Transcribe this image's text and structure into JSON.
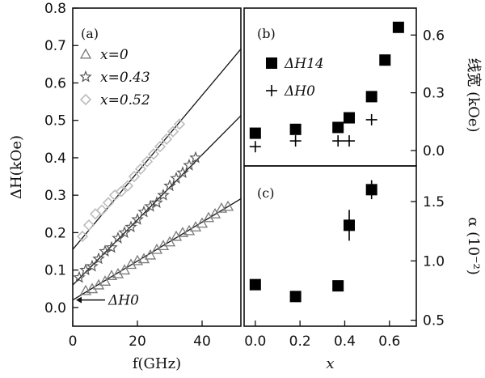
{
  "chart_data": [
    {
      "panel": "(a)",
      "type": "scatter",
      "xlabel": "f(GHz)",
      "ylabel": "ΔH(kOe)",
      "xlim": [
        0,
        52
      ],
      "ylim": [
        -0.05,
        0.8
      ],
      "xticks": [
        0,
        20,
        40
      ],
      "yticks": [
        0.0,
        0.1,
        0.2,
        0.3,
        0.4,
        0.5,
        0.6,
        0.7,
        0.8
      ],
      "annotation": "ΔH0",
      "series": [
        {
          "name": "x=0",
          "marker": "triangle",
          "color": "#7a7a7a",
          "fit": {
            "intercept": 0.02,
            "slope": 0.0052
          },
          "x": [
            4,
            6,
            8,
            10,
            12,
            14,
            16,
            18,
            20,
            22,
            24,
            26,
            28,
            30,
            32,
            34,
            36,
            38,
            40,
            42,
            44,
            46,
            48
          ],
          "y": [
            0.045,
            0.05,
            0.06,
            0.07,
            0.085,
            0.09,
            0.1,
            0.115,
            0.125,
            0.13,
            0.14,
            0.155,
            0.165,
            0.175,
            0.19,
            0.2,
            0.205,
            0.215,
            0.225,
            0.24,
            0.25,
            0.265,
            0.27
          ]
        },
        {
          "name": "x=0.43",
          "marker": "star",
          "color": "#555555",
          "fit": {
            "intercept": 0.06,
            "slope": 0.0087
          },
          "x": [
            2,
            4,
            6,
            8,
            10,
            12,
            14,
            16,
            18,
            20,
            22,
            24,
            26,
            28,
            30,
            32,
            34,
            36,
            38
          ],
          "y": [
            0.08,
            0.1,
            0.11,
            0.13,
            0.15,
            0.16,
            0.185,
            0.2,
            0.215,
            0.235,
            0.255,
            0.27,
            0.28,
            0.3,
            0.325,
            0.345,
            0.36,
            0.38,
            0.4
          ]
        },
        {
          "name": "x=0.52",
          "marker": "diamond",
          "color": "#bdbdbd",
          "fit": {
            "intercept": 0.155,
            "slope": 0.0103
          },
          "x": [
            3,
            5,
            7,
            9,
            11,
            13,
            15,
            17,
            19,
            21,
            23,
            25,
            27,
            29,
            31,
            33
          ],
          "y": [
            0.19,
            0.22,
            0.25,
            0.26,
            0.28,
            0.3,
            0.31,
            0.325,
            0.35,
            0.37,
            0.39,
            0.41,
            0.43,
            0.45,
            0.47,
            0.49
          ]
        }
      ]
    },
    {
      "panel": "(b)",
      "type": "scatter",
      "xlim": [
        -0.05,
        0.72
      ],
      "ylim": [
        -0.08,
        0.74
      ],
      "yticks": [
        0.0,
        0.3,
        0.6
      ],
      "ylabel": "线宽 (kOe)",
      "series": [
        {
          "name": "ΔH14",
          "marker": "square",
          "x": [
            0.0,
            0.18,
            0.37,
            0.42,
            0.52,
            0.58,
            0.64
          ],
          "y": [
            0.09,
            0.11,
            0.12,
            0.17,
            0.28,
            0.47,
            0.64
          ]
        },
        {
          "name": "ΔH0",
          "marker": "plus",
          "x": [
            0.0,
            0.18,
            0.37,
            0.42,
            0.52
          ],
          "y": [
            0.02,
            0.05,
            0.05,
            0.05,
            0.16
          ]
        }
      ]
    },
    {
      "panel": "(c)",
      "type": "scatter",
      "xlabel": "x",
      "ylabel": "α (10⁻²)",
      "xlim": [
        -0.05,
        0.72
      ],
      "ylim": [
        0.45,
        1.8
      ],
      "xticks": [
        0.0,
        0.2,
        0.4,
        0.6
      ],
      "yticks": [
        0.5,
        1.0,
        1.5
      ],
      "series": [
        {
          "marker": "square",
          "x": [
            0.0,
            0.18,
            0.37,
            0.42,
            0.52
          ],
          "y": [
            0.8,
            0.7,
            0.79,
            1.3,
            1.6
          ],
          "err": [
            0,
            0,
            0,
            0.13,
            0.08
          ]
        }
      ]
    }
  ]
}
